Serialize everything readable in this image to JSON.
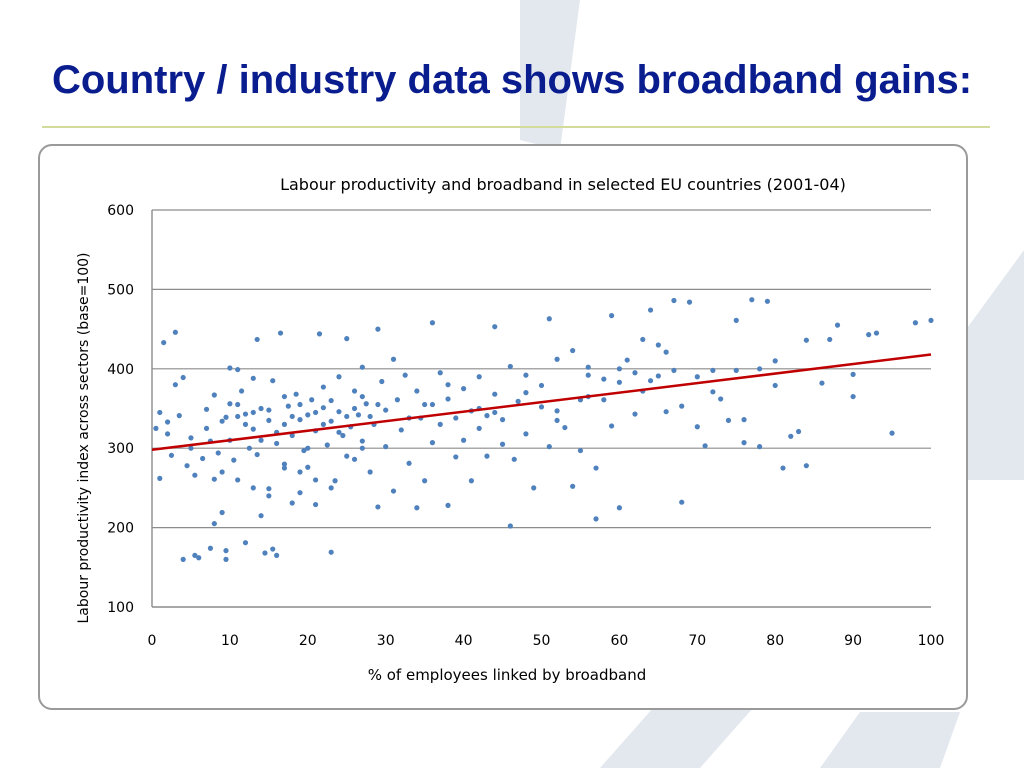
{
  "slide": {
    "title": "Country / industry data shows broadband gains:"
  },
  "chart_data": {
    "type": "scatter",
    "title": "Labour productivity and broadband in selected EU countries (2001-04)",
    "xlabel": "% of employees linked by broadband",
    "ylabel": "Labour productivity index across sectors (base=100)",
    "xlim": [
      0,
      100
    ],
    "ylim": [
      100,
      600
    ],
    "xticks": [
      0,
      10,
      20,
      30,
      40,
      50,
      60,
      70,
      80,
      90,
      100
    ],
    "yticks": [
      100,
      200,
      300,
      400,
      500,
      600
    ],
    "grid": "horizontal",
    "point_color": "#4f81bd",
    "trendline": {
      "x": [
        0,
        100
      ],
      "y": [
        298,
        418
      ],
      "color": "#c00000"
    },
    "points": [
      [
        0.5,
        325
      ],
      [
        1,
        262
      ],
      [
        1,
        345
      ],
      [
        1.5,
        433
      ],
      [
        2,
        318
      ],
      [
        2,
        333
      ],
      [
        2.5,
        291
      ],
      [
        3,
        380
      ],
      [
        3,
        446
      ],
      [
        3.5,
        341
      ],
      [
        4,
        160
      ],
      [
        4,
        389
      ],
      [
        4.5,
        278
      ],
      [
        5,
        300
      ],
      [
        5,
        313
      ],
      [
        5.5,
        266
      ],
      [
        5.5,
        165
      ],
      [
        6,
        162
      ],
      [
        6.5,
        287
      ],
      [
        7,
        325
      ],
      [
        7,
        349
      ],
      [
        7.5,
        174
      ],
      [
        7.5,
        309
      ],
      [
        8,
        205
      ],
      [
        8,
        261
      ],
      [
        8,
        367
      ],
      [
        8.5,
        294
      ],
      [
        9,
        334
      ],
      [
        9,
        219
      ],
      [
        9.5,
        171
      ],
      [
        9.5,
        160
      ],
      [
        9.5,
        339
      ],
      [
        10,
        356
      ],
      [
        10,
        401
      ],
      [
        10.5,
        285
      ],
      [
        11,
        340
      ],
      [
        11,
        399
      ],
      [
        11.5,
        372
      ],
      [
        12,
        181
      ],
      [
        12,
        343
      ],
      [
        12.5,
        300
      ],
      [
        13,
        388
      ],
      [
        13,
        324
      ],
      [
        13.5,
        437
      ],
      [
        13.5,
        292
      ],
      [
        14,
        310
      ],
      [
        14,
        215
      ],
      [
        14.5,
        168
      ],
      [
        15,
        348
      ],
      [
        15,
        249
      ],
      [
        15.5,
        385
      ],
      [
        15.5,
        173
      ],
      [
        16,
        306
      ],
      [
        16,
        165
      ],
      [
        16.5,
        445
      ],
      [
        17,
        330
      ],
      [
        17,
        275
      ],
      [
        17.5,
        353
      ],
      [
        18,
        316
      ],
      [
        18,
        231
      ],
      [
        18.5,
        368
      ],
      [
        19,
        336
      ],
      [
        19,
        244
      ],
      [
        19.5,
        297
      ],
      [
        20,
        342
      ],
      [
        20,
        276
      ],
      [
        20.5,
        361
      ],
      [
        21,
        322
      ],
      [
        21,
        229
      ],
      [
        21.5,
        444
      ],
      [
        22,
        351
      ],
      [
        22,
        377
      ],
      [
        22.5,
        304
      ],
      [
        23,
        334
      ],
      [
        23,
        169
      ],
      [
        23.5,
        259
      ],
      [
        24,
        346
      ],
      [
        24,
        390
      ],
      [
        24.5,
        316
      ],
      [
        25,
        438
      ],
      [
        25.5,
        327
      ],
      [
        26,
        372
      ],
      [
        26,
        286
      ],
      [
        26.5,
        342
      ],
      [
        27,
        402
      ],
      [
        27,
        309
      ],
      [
        27.5,
        356
      ],
      [
        28,
        270
      ],
      [
        28.5,
        330
      ],
      [
        29,
        450
      ],
      [
        29,
        226
      ],
      [
        29.5,
        384
      ],
      [
        30,
        348
      ],
      [
        30,
        302
      ],
      [
        31,
        412
      ],
      [
        31,
        246
      ],
      [
        31.5,
        361
      ],
      [
        32,
        323
      ],
      [
        32.5,
        392
      ],
      [
        33,
        338
      ],
      [
        33,
        281
      ],
      [
        34,
        372
      ],
      [
        34,
        225
      ],
      [
        34.5,
        338
      ],
      [
        35,
        355
      ],
      [
        35,
        259
      ],
      [
        36,
        458
      ],
      [
        36,
        307
      ],
      [
        37,
        330
      ],
      [
        37,
        395
      ],
      [
        38,
        362
      ],
      [
        38,
        228
      ],
      [
        39,
        338
      ],
      [
        39,
        289
      ],
      [
        40,
        375
      ],
      [
        40,
        310
      ],
      [
        41,
        347
      ],
      [
        41,
        259
      ],
      [
        42,
        390
      ],
      [
        42,
        325
      ],
      [
        43,
        341
      ],
      [
        43,
        290
      ],
      [
        44,
        368
      ],
      [
        44,
        453
      ],
      [
        45,
        305
      ],
      [
        45,
        336
      ],
      [
        46,
        403
      ],
      [
        46,
        202
      ],
      [
        46.5,
        286
      ],
      [
        47,
        359
      ],
      [
        48,
        392
      ],
      [
        48,
        318
      ],
      [
        49,
        250
      ],
      [
        50,
        352
      ],
      [
        50,
        379
      ],
      [
        51,
        302
      ],
      [
        51,
        463
      ],
      [
        52,
        347
      ],
      [
        52,
        412
      ],
      [
        53,
        326
      ],
      [
        54,
        423
      ],
      [
        54,
        252
      ],
      [
        55,
        361
      ],
      [
        55,
        297
      ],
      [
        56,
        392
      ],
      [
        56,
        402
      ],
      [
        57,
        275
      ],
      [
        57,
        211
      ],
      [
        58,
        361
      ],
      [
        58,
        387
      ],
      [
        59,
        328
      ],
      [
        59,
        467
      ],
      [
        60,
        383
      ],
      [
        60,
        225
      ],
      [
        61,
        411
      ],
      [
        62,
        343
      ],
      [
        62,
        395
      ],
      [
        63,
        437
      ],
      [
        63,
        372
      ],
      [
        64,
        474
      ],
      [
        65,
        391
      ],
      [
        65,
        430
      ],
      [
        66,
        346
      ],
      [
        66,
        421
      ],
      [
        67,
        486
      ],
      [
        67,
        398
      ],
      [
        68,
        353
      ],
      [
        68,
        232
      ],
      [
        69,
        484
      ],
      [
        70,
        327
      ],
      [
        70,
        390
      ],
      [
        71,
        303
      ],
      [
        72,
        371
      ],
      [
        72,
        398
      ],
      [
        73,
        362
      ],
      [
        74,
        335
      ],
      [
        75,
        461
      ],
      [
        75,
        398
      ],
      [
        76,
        307
      ],
      [
        76,
        336
      ],
      [
        77,
        487
      ],
      [
        78,
        400
      ],
      [
        78,
        302
      ],
      [
        79,
        485
      ],
      [
        80,
        379
      ],
      [
        80,
        410
      ],
      [
        81,
        275
      ],
      [
        82,
        315
      ],
      [
        83,
        321
      ],
      [
        84,
        436
      ],
      [
        84,
        278
      ],
      [
        86,
        382
      ],
      [
        87,
        437
      ],
      [
        88,
        455
      ],
      [
        90,
        365
      ],
      [
        90,
        393
      ],
      [
        92,
        443
      ],
      [
        93,
        445
      ],
      [
        95,
        319
      ],
      [
        98,
        458
      ],
      [
        100,
        461
      ],
      [
        36,
        355
      ],
      [
        38,
        380
      ],
      [
        42,
        350
      ],
      [
        44,
        345
      ],
      [
        48,
        370
      ],
      [
        52,
        335
      ],
      [
        56,
        365
      ],
      [
        60,
        400
      ],
      [
        64,
        385
      ],
      [
        10,
        310
      ],
      [
        12,
        330
      ],
      [
        14,
        350
      ],
      [
        16,
        320
      ],
      [
        18,
        340
      ],
      [
        20,
        300
      ],
      [
        22,
        330
      ],
      [
        24,
        320
      ],
      [
        26,
        350
      ],
      [
        28,
        340
      ],
      [
        11,
        355
      ],
      [
        13,
        345
      ],
      [
        15,
        335
      ],
      [
        17,
        365
      ],
      [
        19,
        355
      ],
      [
        21,
        345
      ],
      [
        23,
        360
      ],
      [
        25,
        340
      ],
      [
        27,
        365
      ],
      [
        29,
        355
      ],
      [
        9,
        270
      ],
      [
        11,
        260
      ],
      [
        13,
        250
      ],
      [
        15,
        240
      ],
      [
        17,
        280
      ],
      [
        19,
        270
      ],
      [
        21,
        260
      ],
      [
        23,
        250
      ],
      [
        25,
        290
      ],
      [
        27,
        300
      ]
    ]
  }
}
